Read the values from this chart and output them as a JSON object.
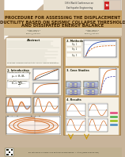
{
  "bg_color": "#c8b49a",
  "title_bg": "#c8a060",
  "title_color": "#3a2000",
  "white": "#ffffff",
  "cream": "#f0ead8",
  "tan": "#c8b49a",
  "dark_tan": "#b09070",
  "cork_color": "#c8a060",
  "panel_bg": "#f5f0e5",
  "panel_border": "#b09060",
  "plot_bg": "#ffffff",
  "text_dark": "#222211",
  "orange": "#cc5500",
  "blue_line": "#2244aa",
  "conf_header_bg": "#e8e0d0",
  "footer_bg": "#c0b090",
  "pink": "#e05080",
  "green": "#50b050",
  "yellow_green": "#a0c020",
  "light_blue": "#5090c0",
  "title_line1": "PROCEDURE FOR ASSESSING THE DISPLACEMENT",
  "title_line2": "DUCTILITY BASED ON SEISMIC COLLAPSE THRESHOLD",
  "title_line3": "AND DISSIPATED ENERGY BALANCE"
}
